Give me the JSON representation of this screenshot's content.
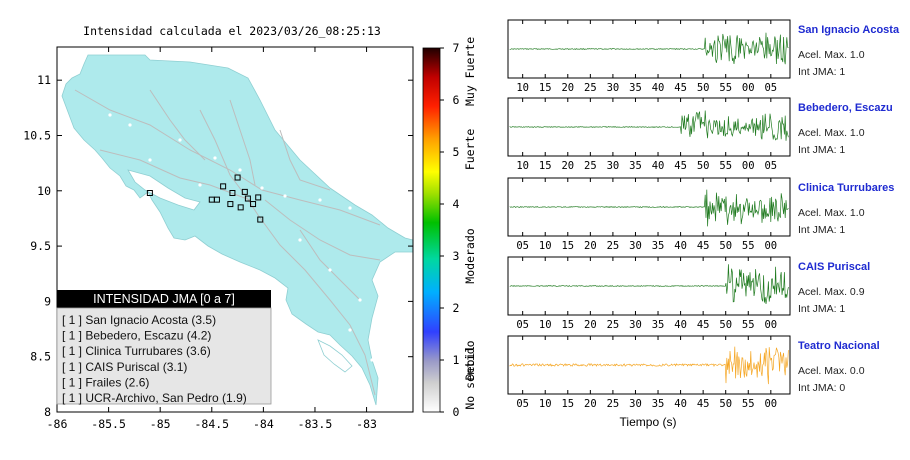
{
  "map": {
    "title": "Intensidad calculada el 2023/03/26_08:25:13",
    "lat_ticks": [
      "11",
      "10.5",
      "10",
      "9.5",
      "9",
      "8.5",
      "8"
    ],
    "lon_ticks": [
      "-86",
      "-85.5",
      "-85",
      "-84.5",
      "-84",
      "-83.5",
      "-83"
    ],
    "legend_title": "INTENSIDAD JMA [0 a 7]",
    "legend_items": [
      "[ 1 ]  San Ignacio Acosta (3.5)",
      "[ 1 ]  Bebedero, Escazu (4.2)",
      "[ 1 ]  Clinica Turrubares (3.6)",
      "[ 1 ]  CAIS Puriscal (3.1)",
      "[ 1 ]  Frailes (2.6)",
      "[ 1 ]  UCR-Archivo, San Pedro (1.9)"
    ],
    "colors": {
      "land": "#aeeaec",
      "sea": "#ffffff",
      "roads": "#bdbdbd",
      "stations": "#000000"
    }
  },
  "colorbar": {
    "ticks": [
      "7",
      "6",
      "5",
      "4",
      "3",
      "2",
      "1",
      "0"
    ],
    "labels": [
      "Muy Fuerte",
      "Fuerte",
      "Moderado",
      "Debil",
      "No sentido"
    ]
  },
  "waveforms": {
    "xlabel": "Tiempo (s)",
    "panels": [
      {
        "name": "San Ignacio Acosta",
        "accel_label": "Acel. Max. 1.0",
        "int_label": "Int JMA: 1",
        "ticks": [
          "10",
          "15",
          "20",
          "25",
          "30",
          "35",
          "40",
          "45",
          "50",
          "55",
          "00",
          "05"
        ],
        "color": "#1f7a1f"
      },
      {
        "name": "Bebedero, Escazu",
        "accel_label": "Acel. Max. 1.0",
        "int_label": "Int JMA: 1",
        "ticks": [
          "10",
          "15",
          "20",
          "25",
          "30",
          "35",
          "40",
          "45",
          "50",
          "55",
          "00",
          "05"
        ],
        "color": "#1f7a1f"
      },
      {
        "name": "Clinica Turrubares",
        "accel_label": "Acel. Max. 1.0",
        "int_label": "Int JMA: 1",
        "ticks": [
          "05",
          "10",
          "15",
          "20",
          "25",
          "30",
          "35",
          "40",
          "45",
          "50",
          "55",
          "00"
        ],
        "color": "#1f7a1f"
      },
      {
        "name": "CAIS Puriscal",
        "accel_label": "Acel. Max. 0.9",
        "int_label": "Int JMA: 1",
        "ticks": [
          "05",
          "10",
          "15",
          "20",
          "25",
          "30",
          "35",
          "40",
          "45",
          "50",
          "55",
          "00"
        ],
        "color": "#1f7a1f"
      },
      {
        "name": "Teatro Nacional",
        "accel_label": "Acel. Max. 0.0",
        "int_label": "Int JMA: 0",
        "ticks": [
          "05",
          "10",
          "15",
          "20",
          "25",
          "30",
          "35",
          "40",
          "45",
          "50",
          "55",
          "00"
        ],
        "color": "#f5a623"
      }
    ]
  },
  "chart_data": [
    {
      "type": "scatter",
      "title": "Intensidad calculada el 2023/03/26_08:25:13",
      "xlim": [
        -86,
        -82.55
      ],
      "ylim": [
        8,
        11.3
      ],
      "x_ticks": [
        -86,
        -85.5,
        -85,
        -84.5,
        -84,
        -83.5,
        -83
      ],
      "y_ticks": [
        8,
        8.5,
        9,
        9.5,
        10,
        10.5,
        11
      ],
      "stations": [
        {
          "lon": -84.22,
          "lat": 9.85
        },
        {
          "lon": -84.15,
          "lat": 9.93
        },
        {
          "lon": -84.45,
          "lat": 9.92
        },
        {
          "lon": -84.32,
          "lat": 9.88
        },
        {
          "lon": -84.03,
          "lat": 9.74
        },
        {
          "lon": -84.05,
          "lat": 9.94
        },
        {
          "lon": -84.25,
          "lat": 10.12
        },
        {
          "lon": -84.3,
          "lat": 9.98
        },
        {
          "lon": -84.39,
          "lat": 10.04
        },
        {
          "lon": -84.18,
          "lat": 9.99
        },
        {
          "lon": -84.1,
          "lat": 9.88
        },
        {
          "lon": -84.5,
          "lat": 9.92
        },
        {
          "lon": -85.1,
          "lat": 9.98
        }
      ]
    },
    {
      "type": "heatmap",
      "colorbar_range": [
        0,
        7
      ],
      "ticks": [
        0,
        1,
        2,
        3,
        4,
        5,
        6,
        7
      ],
      "categories": [
        "No sentido",
        "Debil",
        "Moderado",
        "Fuerte",
        "Muy Fuerte"
      ]
    },
    {
      "type": "line",
      "xlabel": "Tiempo (s)",
      "series": [
        {
          "name": "San Ignacio Acosta",
          "accel_max": 1.0,
          "int_jma": 1,
          "signal_onset_tick": "50"
        },
        {
          "name": "Bebedero, Escazu",
          "accel_max": 1.0,
          "int_jma": 1,
          "signal_onset_tick": "45"
        },
        {
          "name": "Clinica Turrubares",
          "accel_max": 1.0,
          "int_jma": 1,
          "signal_onset_tick": "45"
        },
        {
          "name": "CAIS Puriscal",
          "accel_max": 0.9,
          "int_jma": 1,
          "signal_onset_tick": "50"
        },
        {
          "name": "Teatro Nacional",
          "accel_max": 0.0,
          "int_jma": 0,
          "signal_onset_tick": "50"
        }
      ]
    }
  ]
}
